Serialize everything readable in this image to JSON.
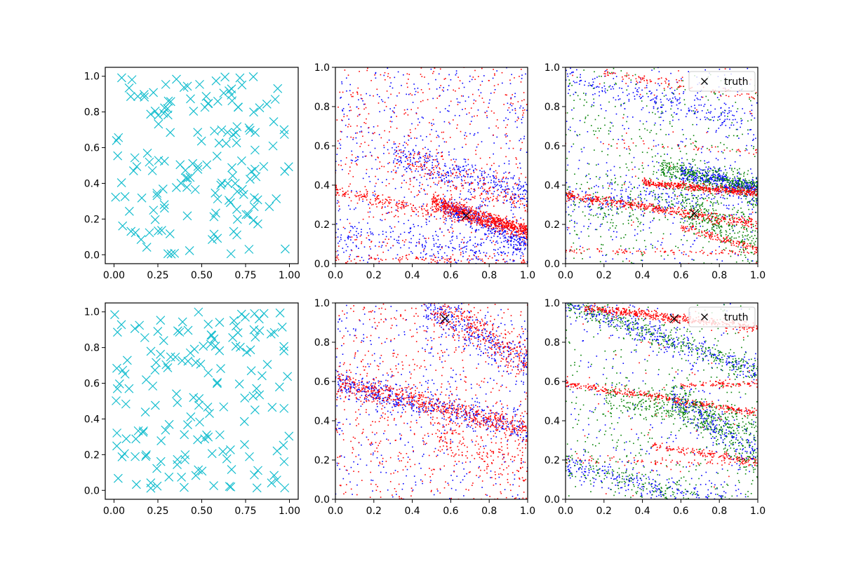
{
  "chart_data": [
    {
      "type": "scatter",
      "xlim": [
        -0.05,
        1.05
      ],
      "ylim": [
        -0.05,
        1.05
      ],
      "xticks": [
        "0.00",
        "0.25",
        "0.50",
        "0.75",
        "1.00"
      ],
      "yticks": [
        "0.0",
        "0.2",
        "0.4",
        "0.6",
        "0.8",
        "1.0"
      ],
      "grid": false,
      "series": [
        {
          "marker": "x",
          "color": "#17becf",
          "distribution": "uniform",
          "count": 160
        }
      ]
    },
    {
      "type": "scatter",
      "xlim": [
        0,
        1
      ],
      "ylim": [
        0,
        1
      ],
      "xticks": [
        "0.0",
        "0.2",
        "0.4",
        "0.6",
        "0.8",
        "1.0"
      ],
      "yticks": [
        "0.0",
        "0.2",
        "0.4",
        "0.6",
        "0.8",
        "1.0"
      ],
      "grid": false,
      "highlight": {
        "x": 0.68,
        "y": 0.245,
        "marker": "x",
        "color": "#000000"
      },
      "bands": [
        {
          "color": "#0000ff",
          "x_from": 0.3,
          "y_at_x0": 0.65,
          "slope": -0.3,
          "spread": 0.04,
          "count": 300
        },
        {
          "color": "#0000ff",
          "x_from": 0.55,
          "y_at_x0": 0.55,
          "slope": -0.45,
          "spread": 0.03,
          "count": 350
        },
        {
          "color": "#0000ff",
          "x_from": 0.0,
          "y_at_x0": 0.15,
          "slope": -0.1,
          "spread": 0.04,
          "count": 200
        },
        {
          "color": "#ff0000",
          "x_from": 0.0,
          "y_at_x0": 0.37,
          "slope": -0.2,
          "spread": 0.015,
          "count": 300
        },
        {
          "color": "#ff0000",
          "x_from": 0.5,
          "y_at_x0": 0.48,
          "slope": -0.32,
          "spread": 0.02,
          "count": 650
        },
        {
          "color": "#ff0000",
          "x_from": 0.0,
          "y_at_x0": 0.03,
          "slope": -0.02,
          "spread": 0.01,
          "count": 80
        },
        {
          "color": "#ff0000",
          "x_from": 0.3,
          "y_at_x0": 0.62,
          "slope": -0.3,
          "spread": 0.05,
          "count": 200
        }
      ],
      "noise": [
        {
          "color": "#0000ff",
          "count": 550
        },
        {
          "color": "#ff0000",
          "count": 500
        }
      ]
    },
    {
      "type": "scatter",
      "xlim": [
        0,
        1
      ],
      "ylim": [
        0,
        1
      ],
      "xticks": [
        "0.0",
        "0.2",
        "0.4",
        "0.6",
        "0.8",
        "1.0"
      ],
      "yticks": [
        "0.0",
        "0.2",
        "0.4",
        "0.6",
        "0.8",
        "1.0"
      ],
      "grid": false,
      "legend": {
        "entries": [
          "truth"
        ],
        "location": "top-right"
      },
      "highlight": {
        "x": 0.67,
        "y": 0.255,
        "marker": "x",
        "color": "#000000"
      },
      "bands": [
        {
          "color": "#0000ff",
          "x_from": 0.0,
          "y_at_x0": 0.33,
          "slope": 0.0,
          "spread": 0.05,
          "count": 250
        },
        {
          "color": "#0000ff",
          "x_from": 0.6,
          "y_at_x0": 0.6,
          "slope": -0.22,
          "spread": 0.025,
          "count": 400
        },
        {
          "color": "#0000ff",
          "x_from": 0.0,
          "y_at_x0": 0.95,
          "slope": -0.25,
          "spread": 0.04,
          "count": 200
        },
        {
          "color": "#008000",
          "x_from": 0.5,
          "y_at_x0": 0.6,
          "slope": -0.22,
          "spread": 0.03,
          "count": 400
        },
        {
          "color": "#008000",
          "x_from": 0.6,
          "y_at_x0": 0.6,
          "slope": -0.5,
          "spread": 0.05,
          "count": 250
        },
        {
          "color": "#008000",
          "x_from": 0.0,
          "y_at_x0": 0.3,
          "slope": 0.0,
          "spread": 0.06,
          "count": 200
        },
        {
          "color": "#ff0000",
          "x_from": 0.0,
          "y_at_x0": 0.35,
          "slope": -0.15,
          "spread": 0.012,
          "count": 450
        },
        {
          "color": "#ff0000",
          "x_from": 0.4,
          "y_at_x0": 0.45,
          "slope": -0.09,
          "spread": 0.01,
          "count": 420
        },
        {
          "color": "#ff0000",
          "x_from": 0.0,
          "y_at_x0": 0.065,
          "slope": -0.01,
          "spread": 0.007,
          "count": 90
        },
        {
          "color": "#ff0000",
          "x_from": 0.6,
          "y_at_x0": 0.37,
          "slope": -0.3,
          "spread": 0.01,
          "count": 130
        },
        {
          "color": "#ff0000",
          "x_from": 0.2,
          "y_at_x0": 1.0,
          "slope": -0.15,
          "spread": 0.01,
          "count": 90
        },
        {
          "color": "#ff0000",
          "x_from": 0.15,
          "y_at_x0": 0.62,
          "slope": -0.05,
          "spread": 0.01,
          "count": 40
        }
      ],
      "noise": [
        {
          "color": "#0000ff",
          "count": 350
        },
        {
          "color": "#008000",
          "count": 450
        },
        {
          "color": "#ff0000",
          "count": 60
        }
      ]
    },
    {
      "type": "scatter",
      "xlim": [
        -0.05,
        1.05
      ],
      "ylim": [
        -0.05,
        1.05
      ],
      "xticks": [
        "0.00",
        "0.25",
        "0.50",
        "0.75",
        "1.00"
      ],
      "yticks": [
        "0.0",
        "0.2",
        "0.4",
        "0.6",
        "0.8",
        "1.0"
      ],
      "grid": false,
      "series": [
        {
          "marker": "x",
          "color": "#17becf",
          "distribution": "uniform",
          "count": 160
        }
      ]
    },
    {
      "type": "scatter",
      "xlim": [
        0,
        1
      ],
      "ylim": [
        0,
        1
      ],
      "xticks": [
        "0.0",
        "0.2",
        "0.4",
        "0.6",
        "0.8",
        "1.0"
      ],
      "yticks": [
        "0.0",
        "0.2",
        "0.4",
        "0.6",
        "0.8",
        "1.0"
      ],
      "grid": false,
      "highlight": {
        "x": 0.57,
        "y": 0.92,
        "marker": "x",
        "color": "#000000"
      },
      "bands": [
        {
          "color": "#0000ff",
          "x_from": 0.0,
          "y_at_x0": 0.6,
          "slope": -0.25,
          "spread": 0.035,
          "count": 500
        },
        {
          "color": "#ff0000",
          "x_from": 0.0,
          "y_at_x0": 0.6,
          "slope": -0.25,
          "spread": 0.03,
          "count": 600
        },
        {
          "color": "#0000ff",
          "x_from": 0.45,
          "y_at_x0": 1.25,
          "slope": -0.55,
          "spread": 0.05,
          "count": 300
        },
        {
          "color": "#ff0000",
          "x_from": 0.5,
          "y_at_x0": 1.3,
          "slope": -0.6,
          "spread": 0.05,
          "count": 300
        },
        {
          "color": "#ff0000",
          "x_from": 0.5,
          "y_at_x0": 0.5,
          "slope": -0.35,
          "spread": 0.06,
          "count": 150
        }
      ],
      "noise": [
        {
          "color": "#0000ff",
          "count": 400
        },
        {
          "color": "#ff0000",
          "count": 600
        }
      ]
    },
    {
      "type": "scatter",
      "xlim": [
        0,
        1
      ],
      "ylim": [
        0,
        1
      ],
      "xticks": [
        "0.0",
        "0.2",
        "0.4",
        "0.6",
        "0.8",
        "1.0"
      ],
      "yticks": [
        "0.0",
        "0.2",
        "0.4",
        "0.6",
        "0.8",
        "1.0"
      ],
      "grid": false,
      "legend": {
        "entries": [
          "truth"
        ],
        "location": "top-right"
      },
      "highlight": {
        "x": 0.565,
        "y": 0.92,
        "marker": "x",
        "color": "#000000"
      },
      "bands": [
        {
          "color": "#0000ff",
          "x_from": 0.0,
          "y_at_x0": 1.0,
          "slope": -0.35,
          "spread": 0.03,
          "count": 350
        },
        {
          "color": "#008000",
          "x_from": 0.0,
          "y_at_x0": 1.0,
          "slope": -0.35,
          "spread": 0.03,
          "count": 350
        },
        {
          "color": "#ff0000",
          "x_from": 0.1,
          "y_at_x0": 0.985,
          "slope": -0.11,
          "spread": 0.012,
          "count": 450
        },
        {
          "color": "#ff0000",
          "x_from": 0.0,
          "y_at_x0": 0.59,
          "slope": -0.15,
          "spread": 0.01,
          "count": 350
        },
        {
          "color": "#ff0000",
          "x_from": 0.6,
          "y_at_x0": 0.57,
          "slope": 0.02,
          "spread": 0.008,
          "count": 90
        },
        {
          "color": "#ff0000",
          "x_from": 0.0,
          "y_at_x0": 0.2,
          "slope": -0.02,
          "spread": 0.01,
          "count": 80
        },
        {
          "color": "#ff0000",
          "x_from": 0.45,
          "y_at_x0": 0.34,
          "slope": -0.15,
          "spread": 0.01,
          "count": 150
        },
        {
          "color": "#0000ff",
          "x_from": 0.0,
          "y_at_x0": 0.18,
          "slope": -0.25,
          "spread": 0.035,
          "count": 300
        },
        {
          "color": "#008000",
          "x_from": 0.0,
          "y_at_x0": 0.18,
          "slope": -0.25,
          "spread": 0.04,
          "count": 200
        },
        {
          "color": "#008000",
          "x_from": 0.2,
          "y_at_x0": 0.57,
          "slope": -0.2,
          "spread": 0.04,
          "count": 350
        },
        {
          "color": "#008000",
          "x_from": 0.55,
          "y_at_x0": 0.95,
          "slope": -0.75,
          "spread": 0.05,
          "count": 250
        },
        {
          "color": "#0000ff",
          "x_from": 0.55,
          "y_at_x0": 0.95,
          "slope": -0.75,
          "spread": 0.05,
          "count": 200
        }
      ],
      "noise": [
        {
          "color": "#0000ff",
          "count": 250
        },
        {
          "color": "#008000",
          "count": 350
        },
        {
          "color": "#ff0000",
          "count": 60
        }
      ]
    }
  ]
}
